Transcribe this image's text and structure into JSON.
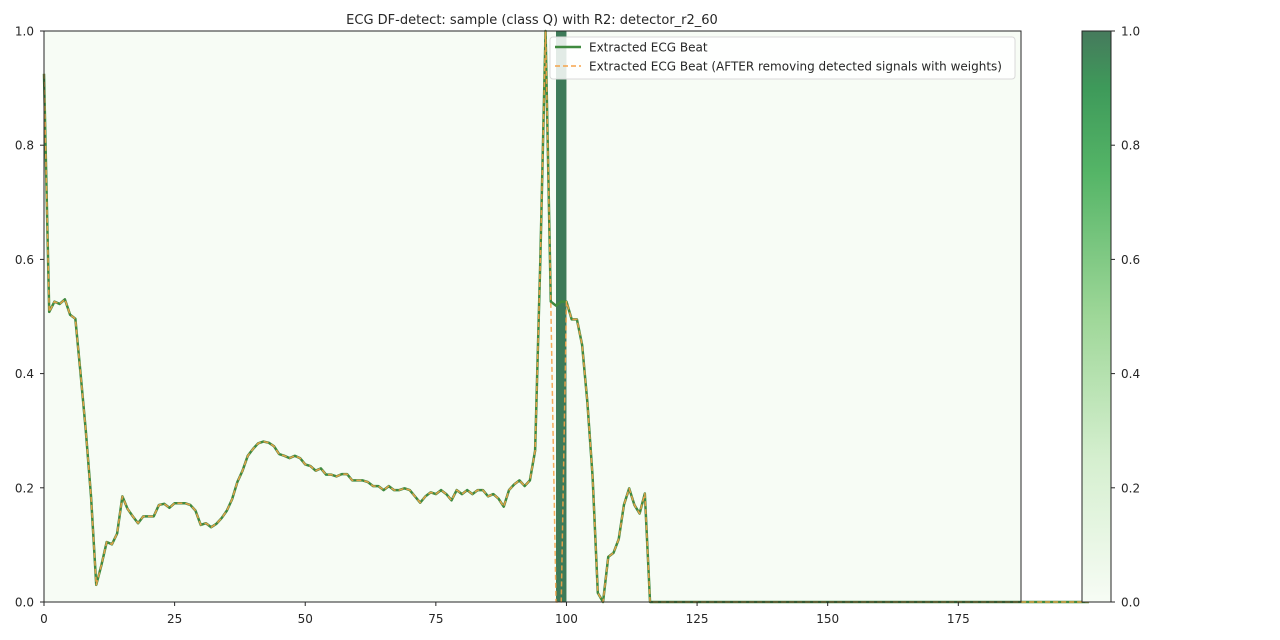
{
  "chart_data": {
    "type": "line",
    "title": "ECG DF-detect: sample (class Q) with R2: detector_r2_60",
    "xlabel": "",
    "ylabel": "",
    "xlim": [
      0,
      187
    ],
    "ylim": [
      0,
      1
    ],
    "x_ticks": [
      0,
      25,
      50,
      75,
      100,
      125,
      150,
      175
    ],
    "y_ticks": [
      0.0,
      0.2,
      0.4,
      0.6,
      0.8,
      1.0
    ],
    "y_tick_labels": [
      "0.0",
      "0.2",
      "0.4",
      "0.6",
      "0.8",
      "1.0"
    ],
    "grid": false,
    "legend_position": "top-right",
    "colors": {
      "beat": "#3f8a3f",
      "after": "#f5a34a",
      "background": "#f7fcf5",
      "highlight": "#3d7a58"
    },
    "highlight": {
      "x_start": 98,
      "x_end": 100,
      "weight": 1.0
    },
    "colorbar": {
      "colormap": "Greens",
      "range": [
        0,
        1
      ],
      "ticks": [
        0.0,
        0.2,
        0.4,
        0.6,
        0.8,
        1.0
      ],
      "tick_labels": [
        "0.0",
        "0.2",
        "0.4",
        "0.6",
        "0.8",
        "1.0"
      ]
    },
    "series": [
      {
        "name": "Extracted ECG Beat",
        "style": "solid",
        "values": [
          0.925,
          0.508,
          0.526,
          0.522,
          0.53,
          0.503,
          0.496,
          0.4,
          0.3,
          0.185,
          0.03,
          0.065,
          0.105,
          0.101,
          0.12,
          0.185,
          0.163,
          0.15,
          0.138,
          0.15,
          0.15,
          0.15,
          0.17,
          0.172,
          0.165,
          0.173,
          0.173,
          0.173,
          0.17,
          0.16,
          0.135,
          0.138,
          0.131,
          0.137,
          0.147,
          0.16,
          0.18,
          0.21,
          0.23,
          0.256,
          0.268,
          0.278,
          0.281,
          0.279,
          0.273,
          0.259,
          0.256,
          0.252,
          0.256,
          0.252,
          0.241,
          0.238,
          0.23,
          0.234,
          0.223,
          0.223,
          0.22,
          0.224,
          0.224,
          0.213,
          0.213,
          0.213,
          0.21,
          0.203,
          0.203,
          0.196,
          0.203,
          0.196,
          0.196,
          0.199,
          0.196,
          0.185,
          0.174,
          0.185,
          0.192,
          0.189,
          0.196,
          0.189,
          0.178,
          0.196,
          0.189,
          0.196,
          0.189,
          0.196,
          0.196,
          0.185,
          0.189,
          0.181,
          0.167,
          0.196,
          0.206,
          0.213,
          0.203,
          0.213,
          0.265,
          0.6,
          1.0,
          0.526,
          0.519,
          0.526,
          0.526,
          0.495,
          0.495,
          0.45,
          0.35,
          0.22,
          0.016,
          0.0,
          0.079,
          0.086,
          0.11,
          0.17,
          0.199,
          0.17,
          0.155,
          0.19,
          0.0,
          0,
          0,
          0,
          0,
          0,
          0,
          0,
          0,
          0,
          0,
          0,
          0,
          0,
          0,
          0,
          0,
          0,
          0,
          0,
          0,
          0,
          0,
          0,
          0,
          0,
          0,
          0,
          0,
          0,
          0,
          0,
          0,
          0,
          0,
          0,
          0,
          0,
          0,
          0,
          0,
          0,
          0,
          0,
          0,
          0,
          0,
          0,
          0,
          0,
          0,
          0,
          0,
          0,
          0,
          0,
          0,
          0,
          0,
          0,
          0,
          0,
          0,
          0,
          0,
          0,
          0,
          0,
          0,
          0,
          0,
          0,
          0,
          0,
          0,
          0,
          0,
          0,
          0,
          0,
          0,
          0,
          0,
          0,
          0
        ]
      },
      {
        "name": "Extracted ECG Beat (AFTER removing detected signals with weights)",
        "style": "dashed",
        "values": [
          0.925,
          0.508,
          0.526,
          0.522,
          0.53,
          0.503,
          0.496,
          0.4,
          0.3,
          0.185,
          0.03,
          0.065,
          0.105,
          0.101,
          0.12,
          0.185,
          0.163,
          0.15,
          0.138,
          0.15,
          0.15,
          0.15,
          0.17,
          0.172,
          0.165,
          0.173,
          0.173,
          0.173,
          0.17,
          0.16,
          0.135,
          0.138,
          0.131,
          0.137,
          0.147,
          0.16,
          0.18,
          0.21,
          0.23,
          0.256,
          0.268,
          0.278,
          0.281,
          0.279,
          0.273,
          0.259,
          0.256,
          0.252,
          0.256,
          0.252,
          0.241,
          0.238,
          0.23,
          0.234,
          0.223,
          0.223,
          0.22,
          0.224,
          0.224,
          0.213,
          0.213,
          0.213,
          0.21,
          0.203,
          0.203,
          0.196,
          0.203,
          0.196,
          0.196,
          0.199,
          0.196,
          0.185,
          0.174,
          0.185,
          0.192,
          0.189,
          0.196,
          0.189,
          0.178,
          0.196,
          0.189,
          0.196,
          0.189,
          0.196,
          0.196,
          0.185,
          0.189,
          0.181,
          0.167,
          0.196,
          0.206,
          0.213,
          0.203,
          0.213,
          0.265,
          0.6,
          1.0,
          0.526,
          0.0,
          0.0,
          0.526,
          0.495,
          0.495,
          0.45,
          0.35,
          0.22,
          0.016,
          0.0,
          0.079,
          0.086,
          0.11,
          0.17,
          0.199,
          0.17,
          0.155,
          0.19,
          0.0,
          0,
          0,
          0,
          0,
          0,
          0,
          0,
          0,
          0,
          0,
          0,
          0,
          0,
          0,
          0,
          0,
          0,
          0,
          0,
          0,
          0,
          0,
          0,
          0,
          0,
          0,
          0,
          0,
          0,
          0,
          0,
          0,
          0,
          0,
          0,
          0,
          0,
          0,
          0,
          0,
          0,
          0,
          0,
          0,
          0,
          0,
          0,
          0,
          0,
          0,
          0,
          0,
          0,
          0,
          0,
          0,
          0,
          0,
          0,
          0,
          0,
          0,
          0,
          0,
          0,
          0,
          0,
          0,
          0,
          0,
          0,
          0,
          0,
          0,
          0,
          0,
          0,
          0,
          0,
          0,
          0,
          0,
          0,
          0
        ]
      }
    ]
  }
}
